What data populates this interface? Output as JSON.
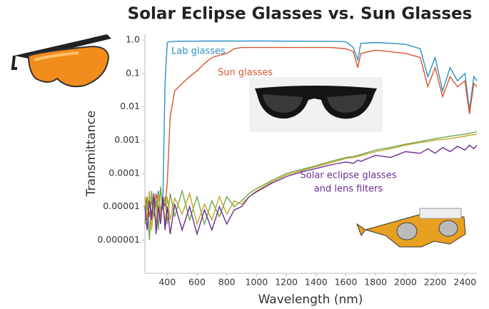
{
  "chart_data": {
    "type": "line",
    "title": "Solar Eclipse Glasses vs. Sun Glasses",
    "xlabel": "Wavelength (nm)",
    "ylabel": "Transmittance",
    "log_y": true,
    "xlim": [
      250,
      2480
    ],
    "ylim": [
      1e-07,
      1.5
    ],
    "xticks": [
      400,
      600,
      800,
      1000,
      1200,
      1400,
      1600,
      1800,
      2000,
      2200,
      2400
    ],
    "yticks": [
      {
        "value": 1,
        "label": "1.0"
      },
      0.1,
      0.01,
      0.001,
      0.0001,
      1e-05,
      1e-06
    ],
    "annotations": [
      "Lab glasses",
      "Sun glasses",
      "Solar eclipse glasses",
      "and lens filters"
    ],
    "x": [
      250,
      265,
      280,
      295,
      310,
      325,
      340,
      355,
      370,
      385,
      400,
      420,
      450,
      500,
      550,
      600,
      650,
      700,
      750,
      800,
      850,
      900,
      950,
      1000,
      1100,
      1200,
      1300,
      1400,
      1500,
      1600,
      1650,
      1680,
      1700,
      1800,
      1900,
      2000,
      2100,
      2150,
      2200,
      2250,
      2300,
      2350,
      2400,
      2430,
      2460,
      2480
    ],
    "series": [
      {
        "color": "#2e8fc6",
        "values": [
          2e-05,
          8e-06,
          1.5e-05,
          6e-06,
          2e-05,
          1e-05,
          3e-05,
          8e-06,
          1.2e-05,
          0.05,
          0.85,
          0.9,
          0.92,
          0.93,
          0.93,
          0.93,
          0.94,
          0.94,
          0.94,
          0.94,
          0.94,
          0.94,
          0.94,
          0.94,
          0.94,
          0.93,
          0.93,
          0.92,
          0.92,
          0.9,
          0.6,
          0.25,
          0.8,
          0.85,
          0.8,
          0.75,
          0.55,
          0.08,
          0.3,
          0.03,
          0.15,
          0.06,
          0.1,
          0.008,
          0.08,
          0.06
        ]
      },
      {
        "color": "#d9532b",
        "values": [
          1e-05,
          2e-05,
          5e-06,
          1.5e-05,
          8e-06,
          2.5e-05,
          1e-05,
          5e-06,
          2e-05,
          1e-05,
          5e-05,
          0.005,
          0.03,
          0.05,
          0.08,
          0.12,
          0.2,
          0.3,
          0.35,
          0.4,
          0.55,
          0.6,
          0.6,
          0.6,
          0.6,
          0.6,
          0.6,
          0.6,
          0.6,
          0.55,
          0.45,
          0.15,
          0.4,
          0.5,
          0.45,
          0.4,
          0.3,
          0.04,
          0.15,
          0.02,
          0.08,
          0.04,
          0.06,
          0.006,
          0.05,
          0.04
        ]
      },
      {
        "color": "#6aa84f",
        "values": [
          3e-06,
          2e-05,
          1e-06,
          3e-05,
          5e-06,
          1.5e-05,
          2e-06,
          4e-05,
          8e-06,
          2e-05,
          3e-06,
          2.5e-05,
          5e-06,
          3e-05,
          4e-06,
          2e-05,
          3e-06,
          1.5e-05,
          5e-06,
          2e-05,
          1e-05,
          1.5e-05,
          2.5e-05,
          3.5e-05,
          6e-05,
          0.0001,
          0.00013,
          0.00017,
          0.00023,
          0.0003,
          0.00032,
          0.00035,
          0.00037,
          0.0005,
          0.0006,
          0.00075,
          0.0009,
          0.001,
          0.0011,
          0.0012,
          0.0013,
          0.0014,
          0.0015,
          0.0016,
          0.0017,
          0.0018
        ]
      },
      {
        "color": "#c9a227",
        "values": [
          2e-05,
          4e-06,
          3e-05,
          2e-06,
          1.2e-05,
          3e-06,
          2.5e-05,
          6e-06,
          1.5e-05,
          3e-06,
          2e-05,
          4e-06,
          1.8e-05,
          6e-06,
          2.5e-05,
          3e-06,
          1.2e-05,
          4e-06,
          2e-05,
          6e-06,
          1.5e-05,
          1.2e-05,
          2e-05,
          3e-05,
          5.5e-05,
          9e-05,
          0.00012,
          0.00016,
          0.00021,
          0.00028,
          0.0003,
          0.00032,
          0.00034,
          0.00045,
          0.00055,
          0.0007,
          0.00085,
          0.0009,
          0.001,
          0.00105,
          0.0011,
          0.0012,
          0.0013,
          0.0014,
          0.00145,
          0.0015
        ]
      },
      {
        "color": "#6b2c91",
        "values": [
          1e-05,
          2e-06,
          1.5e-05,
          4e-06,
          2.5e-05,
          1.5e-06,
          1e-05,
          3e-06,
          2e-05,
          2e-06,
          1e-05,
          1.5e-06,
          1.2e-05,
          2e-06,
          1e-05,
          1.5e-06,
          8e-06,
          2e-06,
          1e-05,
          3e-06,
          8e-06,
          1e-05,
          2e-05,
          2.8e-05,
          5e-05,
          8e-05,
          0.00011,
          0.00014,
          0.00018,
          0.00022,
          0.0002,
          0.00025,
          0.00023,
          0.00035,
          0.0003,
          0.00045,
          0.0004,
          0.00055,
          0.0004,
          0.0006,
          0.00045,
          0.00065,
          0.0005,
          0.0007,
          0.00055,
          0.0007
        ]
      }
    ]
  }
}
